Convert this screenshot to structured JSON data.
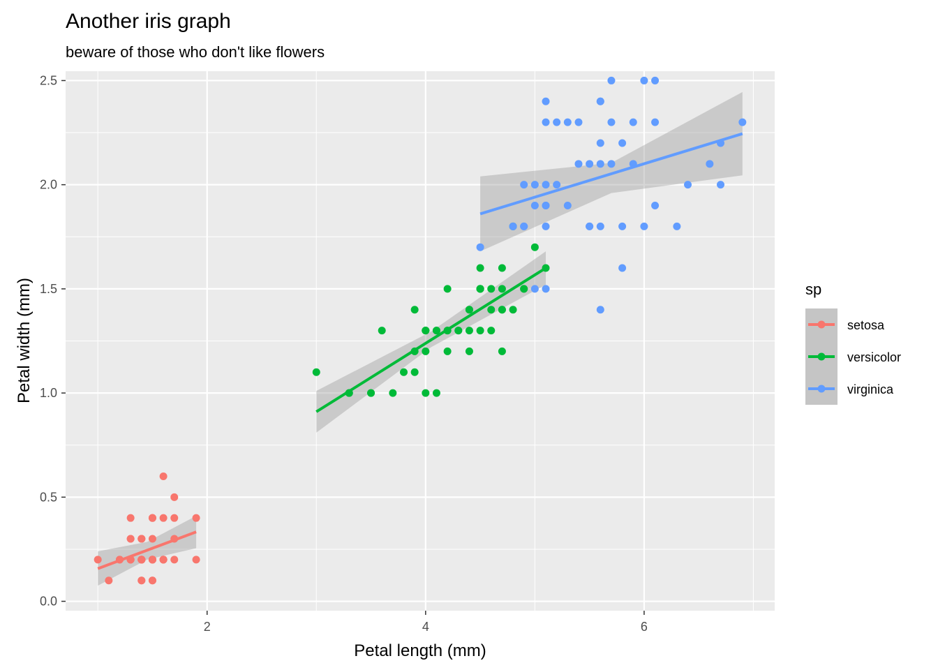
{
  "chart_data": {
    "type": "scatter",
    "title": "Another iris graph",
    "subtitle": "beware of those who don't like flowers",
    "xlabel": "Petal length (mm)",
    "ylabel": "Petal width (mm)",
    "xlim": [
      0.705,
      7.195
    ],
    "ylim": [
      -0.045,
      2.545
    ],
    "xticks": [
      2,
      4,
      6
    ],
    "yticks": [
      0.0,
      0.5,
      1.0,
      1.5,
      2.0,
      2.5
    ],
    "ytick_labels": [
      "0.0",
      "0.5",
      "1.0",
      "1.5",
      "2.0",
      "2.5"
    ],
    "grid": true,
    "legend_title": "sp",
    "legend_position": "right",
    "smooth": "linear fit with confidence band",
    "series": [
      {
        "name": "setosa",
        "color": "#F8766D",
        "points": [
          [
            1.4,
            0.2
          ],
          [
            1.4,
            0.2
          ],
          [
            1.3,
            0.2
          ],
          [
            1.5,
            0.2
          ],
          [
            1.4,
            0.2
          ],
          [
            1.7,
            0.4
          ],
          [
            1.4,
            0.3
          ],
          [
            1.5,
            0.2
          ],
          [
            1.4,
            0.2
          ],
          [
            1.5,
            0.1
          ],
          [
            1.5,
            0.2
          ],
          [
            1.6,
            0.2
          ],
          [
            1.4,
            0.1
          ],
          [
            1.1,
            0.1
          ],
          [
            1.2,
            0.2
          ],
          [
            1.5,
            0.4
          ],
          [
            1.3,
            0.4
          ],
          [
            1.4,
            0.3
          ],
          [
            1.7,
            0.3
          ],
          [
            1.5,
            0.3
          ],
          [
            1.7,
            0.2
          ],
          [
            1.5,
            0.4
          ],
          [
            1.0,
            0.2
          ],
          [
            1.7,
            0.5
          ],
          [
            1.9,
            0.2
          ],
          [
            1.6,
            0.2
          ],
          [
            1.6,
            0.4
          ],
          [
            1.5,
            0.2
          ],
          [
            1.4,
            0.2
          ],
          [
            1.6,
            0.2
          ],
          [
            1.6,
            0.2
          ],
          [
            1.5,
            0.4
          ],
          [
            1.5,
            0.1
          ],
          [
            1.4,
            0.2
          ],
          [
            1.5,
            0.2
          ],
          [
            1.2,
            0.2
          ],
          [
            1.3,
            0.2
          ],
          [
            1.4,
            0.1
          ],
          [
            1.3,
            0.2
          ],
          [
            1.5,
            0.2
          ],
          [
            1.3,
            0.3
          ],
          [
            1.3,
            0.3
          ],
          [
            1.3,
            0.2
          ],
          [
            1.6,
            0.6
          ],
          [
            1.9,
            0.4
          ],
          [
            1.4,
            0.3
          ],
          [
            1.6,
            0.2
          ],
          [
            1.4,
            0.2
          ],
          [
            1.5,
            0.2
          ],
          [
            1.4,
            0.2
          ]
        ],
        "fit": {
          "x": [
            1.0,
            1.9
          ],
          "y": [
            0.157,
            0.333
          ]
        },
        "band": {
          "x": [
            1.0,
            1.45,
            1.9
          ],
          "lower": [
            0.075,
            0.2,
            0.255
          ],
          "upper": [
            0.24,
            0.285,
            0.41
          ]
        }
      },
      {
        "name": "versicolor",
        "color": "#00BA38",
        "points": [
          [
            4.7,
            1.4
          ],
          [
            4.5,
            1.5
          ],
          [
            4.9,
            1.5
          ],
          [
            4.0,
            1.3
          ],
          [
            4.6,
            1.5
          ],
          [
            4.5,
            1.3
          ],
          [
            4.7,
            1.6
          ],
          [
            3.3,
            1.0
          ],
          [
            4.6,
            1.3
          ],
          [
            3.9,
            1.4
          ],
          [
            3.5,
            1.0
          ],
          [
            4.2,
            1.5
          ],
          [
            4.0,
            1.0
          ],
          [
            4.7,
            1.4
          ],
          [
            3.6,
            1.3
          ],
          [
            4.4,
            1.4
          ],
          [
            4.5,
            1.5
          ],
          [
            4.1,
            1.0
          ],
          [
            4.5,
            1.5
          ],
          [
            3.9,
            1.1
          ],
          [
            4.8,
            1.8
          ],
          [
            4.0,
            1.3
          ],
          [
            4.9,
            1.5
          ],
          [
            4.7,
            1.2
          ],
          [
            4.3,
            1.3
          ],
          [
            4.4,
            1.4
          ],
          [
            4.8,
            1.4
          ],
          [
            5.0,
            1.7
          ],
          [
            4.5,
            1.5
          ],
          [
            3.5,
            1.0
          ],
          [
            3.8,
            1.1
          ],
          [
            3.7,
            1.0
          ],
          [
            3.9,
            1.2
          ],
          [
            5.1,
            1.6
          ],
          [
            4.5,
            1.5
          ],
          [
            4.5,
            1.6
          ],
          [
            4.7,
            1.5
          ],
          [
            4.4,
            1.3
          ],
          [
            4.1,
            1.3
          ],
          [
            4.0,
            1.3
          ],
          [
            4.4,
            1.2
          ],
          [
            4.6,
            1.4
          ],
          [
            4.0,
            1.2
          ],
          [
            3.3,
            1.0
          ],
          [
            4.2,
            1.3
          ],
          [
            4.2,
            1.2
          ],
          [
            4.2,
            1.3
          ],
          [
            4.3,
            1.3
          ],
          [
            3.0,
            1.1
          ],
          [
            4.1,
            1.3
          ]
        ],
        "fit": {
          "x": [
            3.0,
            5.1
          ],
          "y": [
            0.91,
            1.6
          ]
        },
        "band": {
          "x": [
            3.0,
            4.05,
            5.1
          ],
          "lower": [
            0.81,
            1.22,
            1.52
          ],
          "upper": [
            1.01,
            1.295,
            1.68
          ]
        }
      },
      {
        "name": "virginica",
        "color": "#619CFF",
        "points": [
          [
            6.0,
            2.5
          ],
          [
            5.1,
            1.9
          ],
          [
            5.9,
            2.1
          ],
          [
            5.6,
            1.8
          ],
          [
            5.8,
            2.2
          ],
          [
            6.6,
            2.1
          ],
          [
            4.5,
            1.7
          ],
          [
            6.3,
            1.8
          ],
          [
            5.8,
            1.8
          ],
          [
            6.1,
            2.5
          ],
          [
            5.1,
            2.0
          ],
          [
            5.3,
            1.9
          ],
          [
            5.5,
            2.1
          ],
          [
            5.0,
            2.0
          ],
          [
            5.1,
            2.4
          ],
          [
            5.3,
            2.3
          ],
          [
            5.5,
            1.8
          ],
          [
            6.7,
            2.2
          ],
          [
            6.9,
            2.3
          ],
          [
            5.0,
            1.5
          ],
          [
            5.7,
            2.3
          ],
          [
            4.9,
            2.0
          ],
          [
            6.7,
            2.0
          ],
          [
            4.9,
            1.8
          ],
          [
            5.7,
            2.1
          ],
          [
            6.0,
            1.8
          ],
          [
            4.8,
            1.8
          ],
          [
            4.9,
            1.8
          ],
          [
            5.6,
            2.1
          ],
          [
            5.8,
            1.6
          ],
          [
            6.1,
            1.9
          ],
          [
            6.4,
            2.0
          ],
          [
            5.6,
            2.2
          ],
          [
            5.1,
            1.5
          ],
          [
            5.6,
            1.4
          ],
          [
            6.1,
            2.3
          ],
          [
            5.6,
            2.4
          ],
          [
            5.5,
            1.8
          ],
          [
            4.8,
            1.8
          ],
          [
            5.4,
            2.1
          ],
          [
            5.6,
            2.4
          ],
          [
            5.1,
            2.3
          ],
          [
            5.1,
            1.9
          ],
          [
            5.9,
            2.3
          ],
          [
            5.7,
            2.5
          ],
          [
            5.2,
            2.3
          ],
          [
            5.0,
            1.9
          ],
          [
            5.2,
            2.0
          ],
          [
            5.4,
            2.3
          ],
          [
            5.1,
            1.8
          ]
        ],
        "fit": {
          "x": [
            4.5,
            6.9
          ],
          "y": [
            1.86,
            2.245
          ]
        },
        "band": {
          "x": [
            4.5,
            5.7,
            6.9
          ],
          "lower": [
            1.68,
            1.96,
            2.045
          ],
          "upper": [
            2.04,
            2.105,
            2.445
          ]
        }
      }
    ]
  }
}
